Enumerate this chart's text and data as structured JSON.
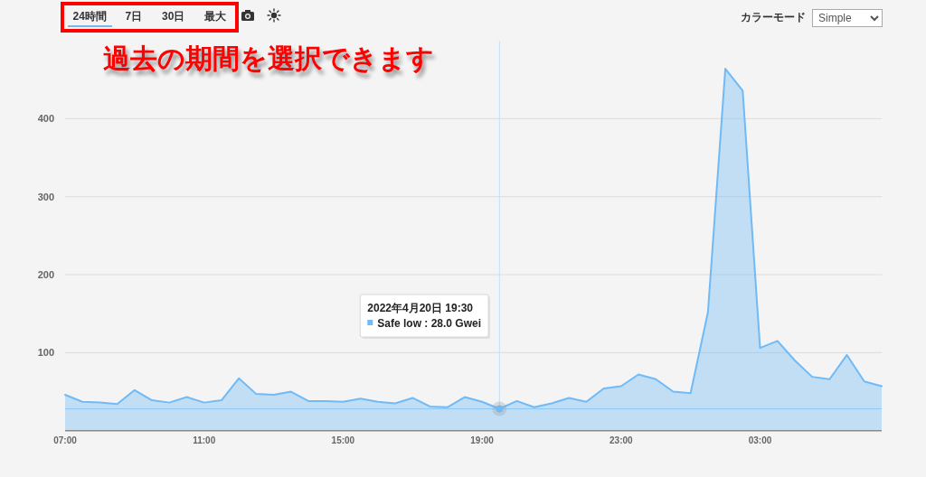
{
  "chart_data": {
    "type": "area",
    "annotations": [
      "24時間",
      "7日",
      "30日",
      "最大",
      "カラーモード",
      "Simple",
      "過去の期間を選択できます",
      "2022年4月20日 19:30",
      "Safe low : 28.0 Gwei"
    ],
    "x": [
      "2022-04-20T07:00",
      "2022-04-20T07:30",
      "2022-04-20T08:00",
      "2022-04-20T08:30",
      "2022-04-20T09:00",
      "2022-04-20T09:30",
      "2022-04-20T10:00",
      "2022-04-20T10:30",
      "2022-04-20T11:00",
      "2022-04-20T11:30",
      "2022-04-20T12:00",
      "2022-04-20T12:30",
      "2022-04-20T13:00",
      "2022-04-20T13:30",
      "2022-04-20T14:00",
      "2022-04-20T14:30",
      "2022-04-20T15:00",
      "2022-04-20T15:30",
      "2022-04-20T16:00",
      "2022-04-20T16:30",
      "2022-04-20T17:00",
      "2022-04-20T17:30",
      "2022-04-20T18:00",
      "2022-04-20T18:30",
      "2022-04-20T19:00",
      "2022-04-20T19:30",
      "2022-04-20T20:00",
      "2022-04-20T20:30",
      "2022-04-20T21:00",
      "2022-04-20T21:30",
      "2022-04-20T22:00",
      "2022-04-20T22:30",
      "2022-04-20T23:00",
      "2022-04-20T23:30",
      "2022-04-21T00:00",
      "2022-04-21T00:30",
      "2022-04-21T01:00",
      "2022-04-21T01:30",
      "2022-04-21T02:00",
      "2022-04-21T02:30",
      "2022-04-21T03:00",
      "2022-04-21T03:30",
      "2022-04-21T04:00",
      "2022-04-21T04:30",
      "2022-04-21T05:00",
      "2022-04-21T05:30",
      "2022-04-21T06:00",
      "2022-04-21T06:30"
    ],
    "series": [
      {
        "color": "#6fbaf7",
        "values": [
          46,
          37,
          36,
          34,
          52,
          39,
          36,
          43,
          36,
          39,
          67,
          47,
          46,
          50,
          38,
          38,
          37,
          41,
          37,
          35,
          42,
          31,
          30,
          43,
          37,
          28,
          38,
          30,
          35,
          42,
          37,
          54,
          57,
          72,
          66,
          50,
          48,
          152,
          464,
          436,
          106,
          115,
          90,
          69,
          66,
          97,
          63,
          57
        ]
      }
    ],
    "xlim": [
      "2022-04-20T07:00",
      "2022-04-21T06:30"
    ],
    "xticks": [
      {
        "value": "2022-04-20T07:00",
        "label": "07:00"
      },
      {
        "value": "2022-04-20T11:00",
        "label": "11:00"
      },
      {
        "value": "2022-04-20T15:00",
        "label": "15:00"
      },
      {
        "value": "2022-04-20T19:00",
        "label": "19:00"
      },
      {
        "value": "2022-04-20T23:00",
        "label": "23:00"
      },
      {
        "value": "2022-04-21T03:00",
        "label": "03:00"
      }
    ],
    "ylim": [
      0,
      500
    ],
    "yticks": [
      100,
      200,
      300,
      400
    ],
    "grid": "y",
    "ref_lines": [
      {
        "axis": "x",
        "value": "2022-04-20T19:30",
        "color": "#c2dff6"
      },
      {
        "axis": "y",
        "value": 28,
        "color": "#8ec9f5"
      }
    ]
  }
}
